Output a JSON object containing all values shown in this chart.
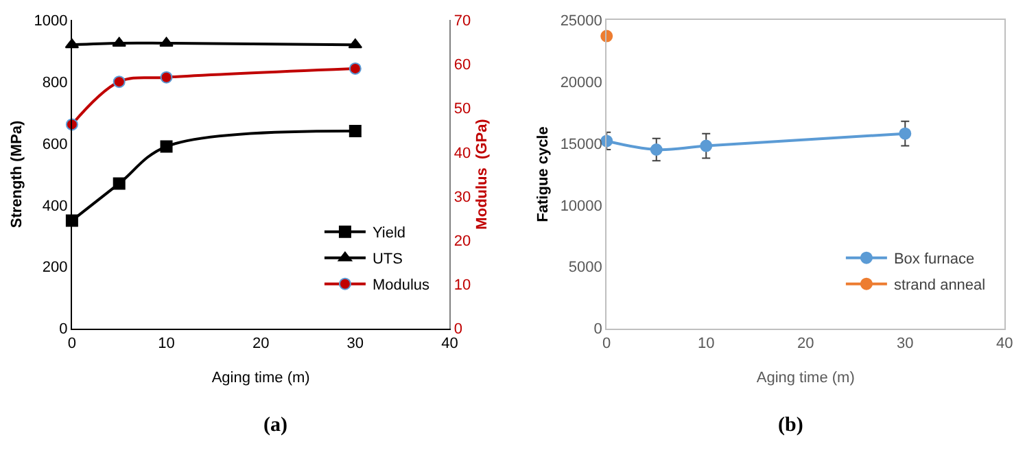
{
  "chart_data": [
    {
      "type": "line",
      "xlabel": "Aging time (m)",
      "ylabel": "Strength (MPa)",
      "y2label": "Modulus  (GPa)",
      "x": [
        0,
        5,
        10,
        30
      ],
      "series": [
        {
          "name": "Yield",
          "color": "#000000",
          "marker": "square",
          "values": [
            350,
            470,
            590,
            640
          ]
        },
        {
          "name": "UTS",
          "color": "#000000",
          "marker": "triangle",
          "values": [
            920,
            925,
            925,
            920
          ]
        },
        {
          "name": "Modulus",
          "color": "#c00000",
          "marker": "circle",
          "axis": "y2",
          "values": [
            46.3,
            56,
            57,
            59
          ]
        }
      ],
      "xlim": [
        0,
        40
      ],
      "xticks": [
        0,
        10,
        20,
        30,
        40
      ],
      "ylim": [
        0,
        1000
      ],
      "yticks": [
        0,
        200,
        400,
        600,
        800,
        1000
      ],
      "y2lim": [
        0,
        70
      ],
      "y2ticks": [
        0,
        10,
        20,
        30,
        40,
        50,
        60,
        70
      ],
      "legend": "bottom right",
      "annotations": [
        "(a)"
      ]
    },
    {
      "type": "line",
      "xlabel": "Aging time (m)",
      "ylabel": "Fatigue cycle",
      "series": [
        {
          "name": "Box furnace",
          "color": "#5b9bd5",
          "marker": "circle",
          "x": [
            0,
            5,
            10,
            30
          ],
          "values": [
            15200,
            14500,
            14800,
            15800
          ],
          "errors": [
            700,
            900,
            1000,
            1000
          ]
        },
        {
          "name": "strand anneal",
          "color": "#ed7d31",
          "marker": "circle",
          "x": [
            0
          ],
          "values": [
            23700
          ]
        }
      ],
      "xlim": [
        0,
        40
      ],
      "xticks": [
        0,
        10,
        20,
        30,
        40
      ],
      "ylim": [
        0,
        25000
      ],
      "yticks": [
        0,
        5000,
        10000,
        15000,
        20000,
        25000
      ],
      "legend": "bottom right",
      "annotations": [
        "(b)"
      ]
    }
  ]
}
